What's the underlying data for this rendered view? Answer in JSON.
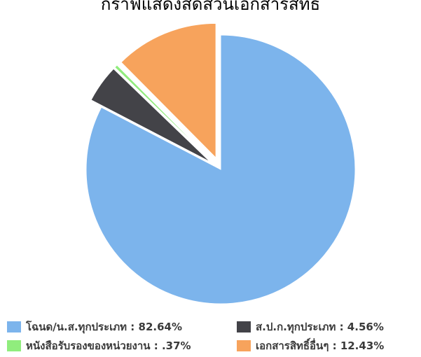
{
  "chart_data": {
    "type": "pie",
    "title": "กราฟแสดงสัดส่วนเอกสารสิทธิ",
    "slices": [
      {
        "label": "โฉนด/น.ส.ทุกประเภท",
        "value": 82.64,
        "display": "82.64%",
        "color": "#7cb4ec",
        "exploded": false
      },
      {
        "label": "ส.ป.ก.ทุกประเภท",
        "value": 4.56,
        "display": "4.56%",
        "color": "#434348",
        "exploded": true
      },
      {
        "label": "หนังสือรับรองของหน่วยงาน",
        "value": 0.37,
        "display": ".37%",
        "color": "#90ed7d",
        "exploded": true
      },
      {
        "label": "เอกสารสิทธิ์อื่นๆ",
        "value": 12.43,
        "display": "12.43%",
        "color": "#f7a35c",
        "exploded": true
      }
    ],
    "legend": {
      "position": "bottom",
      "items": [
        "โฉนด/น.ส.ทุกประเภท : 82.64%",
        "ส.ป.ก.ทุกประเภท : 4.56%",
        "หนังสือรับรองของหน่วยงาน : .37%",
        "เอกสารสิทธิ์อื่นๆ : 12.43%"
      ]
    }
  }
}
